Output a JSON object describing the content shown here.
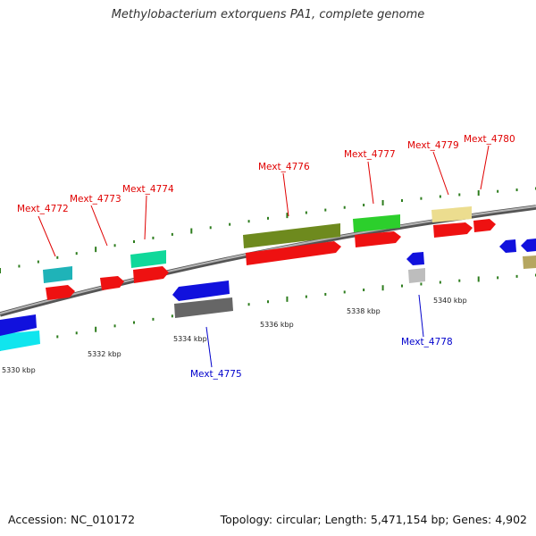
{
  "title": "Methylobacterium extorquens PA1, complete genome",
  "footer": {
    "accession": "Accession: NC_010172",
    "topology": "Topology: circular; Length: 5,471,154 bp; Genes: 4,902"
  },
  "colors": {
    "forward_label": "#e00000",
    "reverse_label": "#0000cc",
    "backbone": "#777777",
    "tick": "#2e7d1e"
  },
  "scale_labels": [
    "5330 kbp",
    "5332 kbp",
    "5334 kbp",
    "5336 kbp",
    "5338 kbp",
    "5340 kbp"
  ],
  "genes": [
    {
      "name": "Mext_4772",
      "strand": "+"
    },
    {
      "name": "Mext_4773",
      "strand": "+"
    },
    {
      "name": "Mext_4774",
      "strand": "+"
    },
    {
      "name": "Mext_4775",
      "strand": "-"
    },
    {
      "name": "Mext_4776",
      "strand": "+"
    },
    {
      "name": "Mext_4777",
      "strand": "+"
    },
    {
      "name": "Mext_4778",
      "strand": "-"
    },
    {
      "name": "Mext_4779",
      "strand": "+"
    },
    {
      "name": "Mext_4780",
      "strand": "+"
    }
  ]
}
